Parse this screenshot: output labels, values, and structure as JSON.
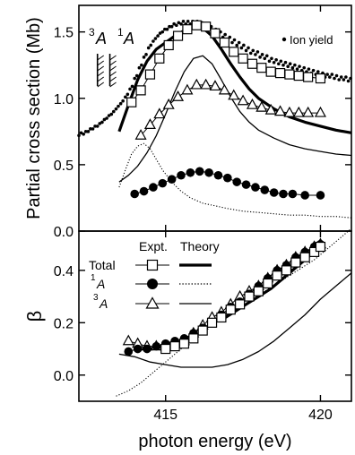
{
  "chart_data": [
    {
      "type": "scatter",
      "ylabel": "Partial cross section (Mb)",
      "xlim": [
        412.2,
        421.0
      ],
      "ylim": [
        0.0,
        1.7
      ],
      "yticks": [
        0.0,
        0.5,
        1.0,
        1.5
      ],
      "annotations": [
        {
          "sup": "3",
          "label": "A"
        },
        {
          "sup": "1",
          "label": "A"
        }
      ],
      "legend": {
        "position": "top-right",
        "label": "Ion yield"
      },
      "threshold_markers": [
        412.8,
        413.2
      ],
      "series": [
        {
          "key": "ion_yield",
          "name": "Ion yield",
          "style": "dots",
          "x": [
            412.2,
            412.35,
            412.5,
            412.65,
            412.8,
            412.95,
            413.1,
            413.25,
            413.4,
            413.55,
            413.7,
            413.85,
            414.0,
            414.15,
            414.3,
            414.45,
            414.6,
            414.75,
            414.9,
            415.05,
            415.2,
            415.35,
            415.5,
            415.65,
            415.8,
            415.95,
            416.1,
            416.25,
            416.4,
            416.55,
            416.7,
            416.85,
            417.0,
            417.15,
            417.3,
            417.45,
            417.6,
            417.75,
            417.9,
            418.05,
            418.2,
            418.35,
            418.5,
            418.65,
            418.8,
            418.95,
            419.1,
            419.25,
            419.4,
            419.55,
            419.7,
            419.85,
            420.0,
            420.15,
            420.3,
            420.45,
            420.6,
            420.75,
            420.9
          ],
          "y": [
            0.73,
            0.74,
            0.76,
            0.78,
            0.8,
            0.83,
            0.86,
            0.89,
            0.93,
            0.97,
            1.02,
            1.08,
            1.16,
            1.24,
            1.32,
            1.39,
            1.44,
            1.48,
            1.51,
            1.53,
            1.55,
            1.56,
            1.57,
            1.57,
            1.57,
            1.57,
            1.56,
            1.55,
            1.53,
            1.51,
            1.49,
            1.47,
            1.45,
            1.43,
            1.41,
            1.39,
            1.37,
            1.35,
            1.34,
            1.32,
            1.31,
            1.29,
            1.28,
            1.27,
            1.26,
            1.25,
            1.24,
            1.23,
            1.22,
            1.21,
            1.2,
            1.19,
            1.18,
            1.17,
            1.17,
            1.16,
            1.15,
            1.15,
            1.14
          ]
        },
        {
          "key": "total_expt",
          "name": "Total Expt.",
          "style": "open-square",
          "x": [
            413.9,
            414.2,
            414.5,
            414.8,
            415.1,
            415.4,
            415.7,
            416.0,
            416.3,
            416.6,
            416.9,
            417.2,
            417.5,
            417.8,
            418.1,
            418.4,
            418.7,
            419.0,
            419.3,
            419.6,
            420.0
          ],
          "y": [
            0.97,
            1.06,
            1.18,
            1.3,
            1.4,
            1.47,
            1.52,
            1.55,
            1.54,
            1.49,
            1.42,
            1.35,
            1.3,
            1.26,
            1.23,
            1.2,
            1.19,
            1.18,
            1.17,
            1.16,
            1.15
          ]
        },
        {
          "key": "total_theory",
          "name": "Total Theory",
          "style": "thick-line",
          "x": [
            413.5,
            413.8,
            414.1,
            414.4,
            414.7,
            415.0,
            415.3,
            415.6,
            415.9,
            416.2,
            416.5,
            416.8,
            417.1,
            417.4,
            417.7,
            418.0,
            418.5,
            419.0,
            419.5,
            420.0,
            420.5,
            421.0
          ],
          "y": [
            0.75,
            0.95,
            1.14,
            1.28,
            1.37,
            1.42,
            1.47,
            1.51,
            1.54,
            1.53,
            1.47,
            1.37,
            1.26,
            1.16,
            1.07,
            1.0,
            0.92,
            0.86,
            0.82,
            0.79,
            0.76,
            0.74
          ]
        },
        {
          "key": "3A_theory",
          "name": "3A Theory",
          "style": "thin-line",
          "x": [
            413.5,
            413.8,
            414.1,
            414.4,
            414.7,
            415.0,
            415.3,
            415.6,
            415.9,
            416.2,
            416.5,
            416.8,
            417.1,
            417.4,
            417.7,
            418.0,
            418.5,
            419.0,
            419.5,
            420.0,
            420.5,
            421.0
          ],
          "y": [
            0.37,
            0.42,
            0.49,
            0.59,
            0.72,
            0.88,
            1.05,
            1.2,
            1.3,
            1.32,
            1.26,
            1.14,
            1.01,
            0.9,
            0.82,
            0.76,
            0.7,
            0.65,
            0.62,
            0.6,
            0.58,
            0.57
          ]
        },
        {
          "key": "1A_theory",
          "name": "1A Theory",
          "style": "dotted",
          "x": [
            413.5,
            413.7,
            413.9,
            414.1,
            414.3,
            414.5,
            414.7,
            414.9,
            415.2,
            415.5,
            415.8,
            416.2,
            416.6,
            417.0,
            417.5,
            418.0,
            418.5,
            419.0,
            419.5,
            420.0,
            420.5,
            421.0
          ],
          "y": [
            0.33,
            0.46,
            0.58,
            0.64,
            0.66,
            0.62,
            0.54,
            0.46,
            0.37,
            0.3,
            0.25,
            0.21,
            0.19,
            0.17,
            0.15,
            0.14,
            0.13,
            0.12,
            0.12,
            0.11,
            0.11,
            0.1
          ]
        },
        {
          "key": "3A_expt",
          "name": "3A Expt.",
          "style": "open-triangle",
          "x": [
            414.2,
            414.5,
            414.8,
            415.1,
            415.4,
            415.7,
            416.0,
            416.3,
            416.6,
            416.9,
            417.2,
            417.5,
            417.8,
            418.1,
            418.4,
            418.7,
            419.0,
            419.3,
            419.6,
            420.0
          ],
          "y": [
            0.72,
            0.8,
            0.88,
            0.95,
            1.01,
            1.06,
            1.1,
            1.1,
            1.09,
            1.06,
            1.02,
            0.98,
            0.95,
            0.93,
            0.91,
            0.9,
            0.89,
            0.89,
            0.89,
            0.89
          ]
        },
        {
          "key": "1A_expt",
          "name": "1A Expt.",
          "style": "filled-circle",
          "x": [
            414.0,
            414.3,
            414.6,
            414.9,
            415.2,
            415.5,
            415.8,
            416.1,
            416.4,
            416.7,
            417.0,
            417.3,
            417.6,
            417.9,
            418.2,
            418.5,
            418.8,
            419.1,
            419.5,
            420.0
          ],
          "y": [
            0.28,
            0.3,
            0.33,
            0.36,
            0.39,
            0.42,
            0.44,
            0.45,
            0.44,
            0.42,
            0.4,
            0.37,
            0.35,
            0.33,
            0.31,
            0.29,
            0.28,
            0.28,
            0.27,
            0.27
          ]
        }
      ]
    },
    {
      "type": "scatter",
      "ylabel": "β",
      "xlabel": "photon energy (eV)",
      "xlim": [
        412.2,
        421.0
      ],
      "ylim": [
        -0.1,
        0.55
      ],
      "yticks": [
        0.0,
        0.2,
        0.4
      ],
      "xticks": [
        415,
        420
      ],
      "legend": {
        "position": "top-left",
        "header_expt": "Expt.",
        "header_theory": "Theory",
        "rows": [
          {
            "label": "Total",
            "sup": "",
            "expt": "open-square",
            "theory": "thick-line"
          },
          {
            "label": "A",
            "sup": "1",
            "expt": "filled-circle",
            "theory": "dotted"
          },
          {
            "label": "A",
            "sup": "3",
            "expt": "open-triangle",
            "theory": "thin-line"
          }
        ]
      },
      "series": [
        {
          "key": "total_expt",
          "name": "Total Expt.",
          "style": "open-square",
          "x": [
            415.0,
            415.3,
            415.6,
            415.9,
            416.2,
            416.5,
            416.8,
            417.1,
            417.4,
            417.7,
            418.0,
            418.3,
            418.6,
            418.9,
            419.2,
            419.5,
            419.8,
            420.0
          ],
          "y": [
            0.1,
            0.11,
            0.12,
            0.14,
            0.17,
            0.2,
            0.22,
            0.25,
            0.27,
            0.3,
            0.32,
            0.35,
            0.38,
            0.4,
            0.43,
            0.45,
            0.47,
            0.49
          ]
        },
        {
          "key": "3A_expt",
          "name": "3A Expt.",
          "style": "open-triangle",
          "x": [
            413.8,
            414.1,
            414.4,
            414.7,
            415.0,
            415.3,
            415.6,
            415.9,
            416.2,
            416.5,
            416.8,
            417.1,
            417.4,
            417.7,
            418.0,
            418.3,
            418.6,
            418.9,
            419.2,
            419.5,
            419.8,
            420.0
          ],
          "y": [
            0.13,
            0.12,
            0.11,
            0.11,
            0.11,
            0.12,
            0.13,
            0.16,
            0.19,
            0.22,
            0.24,
            0.27,
            0.3,
            0.32,
            0.34,
            0.37,
            0.4,
            0.42,
            0.45,
            0.47,
            0.49,
            0.5
          ]
        },
        {
          "key": "1A_expt",
          "name": "1A Expt.",
          "style": "filled-circle",
          "x": [
            413.8,
            414.1,
            414.4,
            414.7,
            415.0,
            415.3,
            415.6,
            415.9,
            416.2,
            416.5,
            416.8,
            417.1,
            417.4,
            417.7,
            418.0,
            418.3,
            418.6,
            418.9,
            419.2,
            419.5,
            419.8,
            420.0
          ],
          "y": [
            0.09,
            0.1,
            0.1,
            0.11,
            0.12,
            0.13,
            0.14,
            0.16,
            0.18,
            0.2,
            0.23,
            0.26,
            0.28,
            0.31,
            0.34,
            0.37,
            0.4,
            0.42,
            0.45,
            0.47,
            0.49,
            0.5
          ]
        },
        {
          "key": "total_theory",
          "name": "Total Theory",
          "style": "thick-line",
          "x": [
            416.8,
            417.2,
            417.6,
            418.0,
            418.4,
            418.8,
            419.2,
            419.6,
            420.0
          ],
          "y": [
            0.21,
            0.24,
            0.27,
            0.3,
            0.33,
            0.37,
            0.41,
            0.45,
            0.49
          ]
        },
        {
          "key": "1A_theory",
          "name": "1A Theory",
          "style": "dotted",
          "x": [
            413.4,
            413.8,
            414.2,
            414.6,
            415.0,
            415.4,
            415.8,
            416.2,
            416.6,
            417.0,
            417.4,
            417.8,
            418.2,
            418.6,
            419.0,
            419.4,
            419.8,
            420.2,
            420.6,
            421.0
          ],
          "y": [
            -0.08,
            -0.06,
            -0.03,
            0.01,
            0.05,
            0.09,
            0.13,
            0.17,
            0.2,
            0.23,
            0.26,
            0.29,
            0.32,
            0.35,
            0.38,
            0.41,
            0.44,
            0.48,
            0.52,
            0.56
          ]
        },
        {
          "key": "3A_theory",
          "name": "3A Theory",
          "style": "thin-line",
          "x": [
            413.5,
            414.0,
            414.5,
            415.0,
            415.5,
            416.0,
            416.5,
            417.0,
            417.5,
            418.0,
            418.5,
            419.0,
            419.5,
            420.0,
            420.5,
            421.0
          ],
          "y": [
            0.08,
            0.07,
            0.05,
            0.04,
            0.03,
            0.03,
            0.03,
            0.04,
            0.06,
            0.09,
            0.13,
            0.18,
            0.23,
            0.29,
            0.34,
            0.39
          ]
        }
      ]
    }
  ]
}
